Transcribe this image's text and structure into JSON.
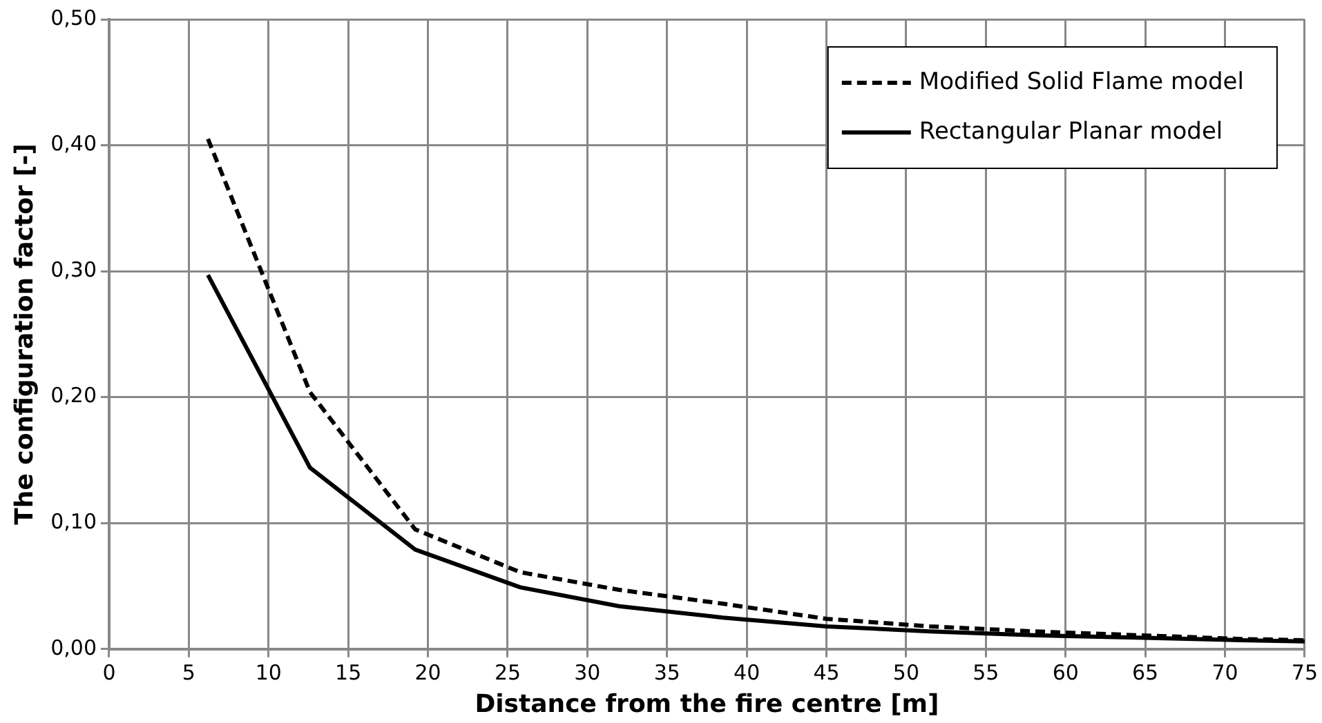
{
  "chart_data": {
    "type": "line",
    "xlabel": "Distance from the fire centre [m]",
    "ylabel": "The configuration factor [-]",
    "x": [
      6.2,
      12.6,
      19.2,
      25.8,
      32,
      38.5,
      45,
      51.5,
      58,
      64.5,
      71,
      75
    ],
    "series": [
      {
        "name": "Modified Solid Flame model",
        "color": "#000000",
        "line_style": "dashed",
        "values": [
          0.405,
          0.204,
          0.095,
          0.061,
          0.047,
          0.036,
          0.024,
          0.018,
          0.014,
          0.011,
          0.008,
          0.007
        ]
      },
      {
        "name": "Rectangular Planar model",
        "color": "#000000",
        "line_style": "solid",
        "values": [
          0.297,
          0.144,
          0.079,
          0.049,
          0.034,
          0.025,
          0.018,
          0.014,
          0.011,
          0.009,
          0.007,
          0.006
        ]
      }
    ],
    "xlim": [
      0,
      75
    ],
    "xticks": [
      0,
      5,
      10,
      15,
      20,
      25,
      30,
      35,
      40,
      45,
      50,
      55,
      60,
      65,
      70,
      75
    ],
    "ylim": [
      0,
      0.5
    ],
    "yticks": [
      {
        "value": 0,
        "label": "0,00"
      },
      {
        "value": 0.1,
        "label": "0,10"
      },
      {
        "value": 0.2,
        "label": "0,20"
      },
      {
        "value": 0.3,
        "label": "0,30"
      },
      {
        "value": 0.4,
        "label": "0,40"
      },
      {
        "value": 0.5,
        "label": "0,50"
      }
    ],
    "grid": true,
    "legend": "top right",
    "marker": "none"
  }
}
